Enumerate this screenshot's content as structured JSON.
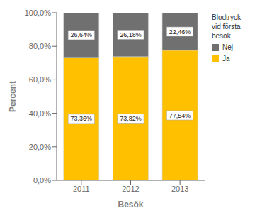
{
  "chart_data": {
    "type": "bar",
    "stacked": true,
    "categories": [
      "2011",
      "2012",
      "2013"
    ],
    "series": [
      {
        "name": "Ja",
        "color": "#FFC000",
        "values": [
          73.36,
          73.82,
          77.54
        ],
        "value_labels": [
          "73,36%",
          "73,82%",
          "77,54%"
        ]
      },
      {
        "name": "Nej",
        "color": "#707070",
        "values": [
          26.64,
          26.18,
          22.46
        ],
        "value_labels": [
          "26,64%",
          "26,18%",
          "22,46%"
        ]
      }
    ],
    "data_labels": true,
    "xlabel": "Besök",
    "ylabel": "Percent",
    "legend_title": "Blodtryck\nvid första\nbesök",
    "legend": "right",
    "ylim": [
      0,
      100
    ],
    "yticks": [
      {
        "value": 0,
        "label": "0,0%"
      },
      {
        "value": 20,
        "label": "20,0%"
      },
      {
        "value": 40,
        "label": "40,0%"
      },
      {
        "value": 60,
        "label": "60,0%"
      },
      {
        "value": 80,
        "label": "80,0%"
      },
      {
        "value": 100,
        "label": "100,0%"
      }
    ],
    "grid": false
  }
}
